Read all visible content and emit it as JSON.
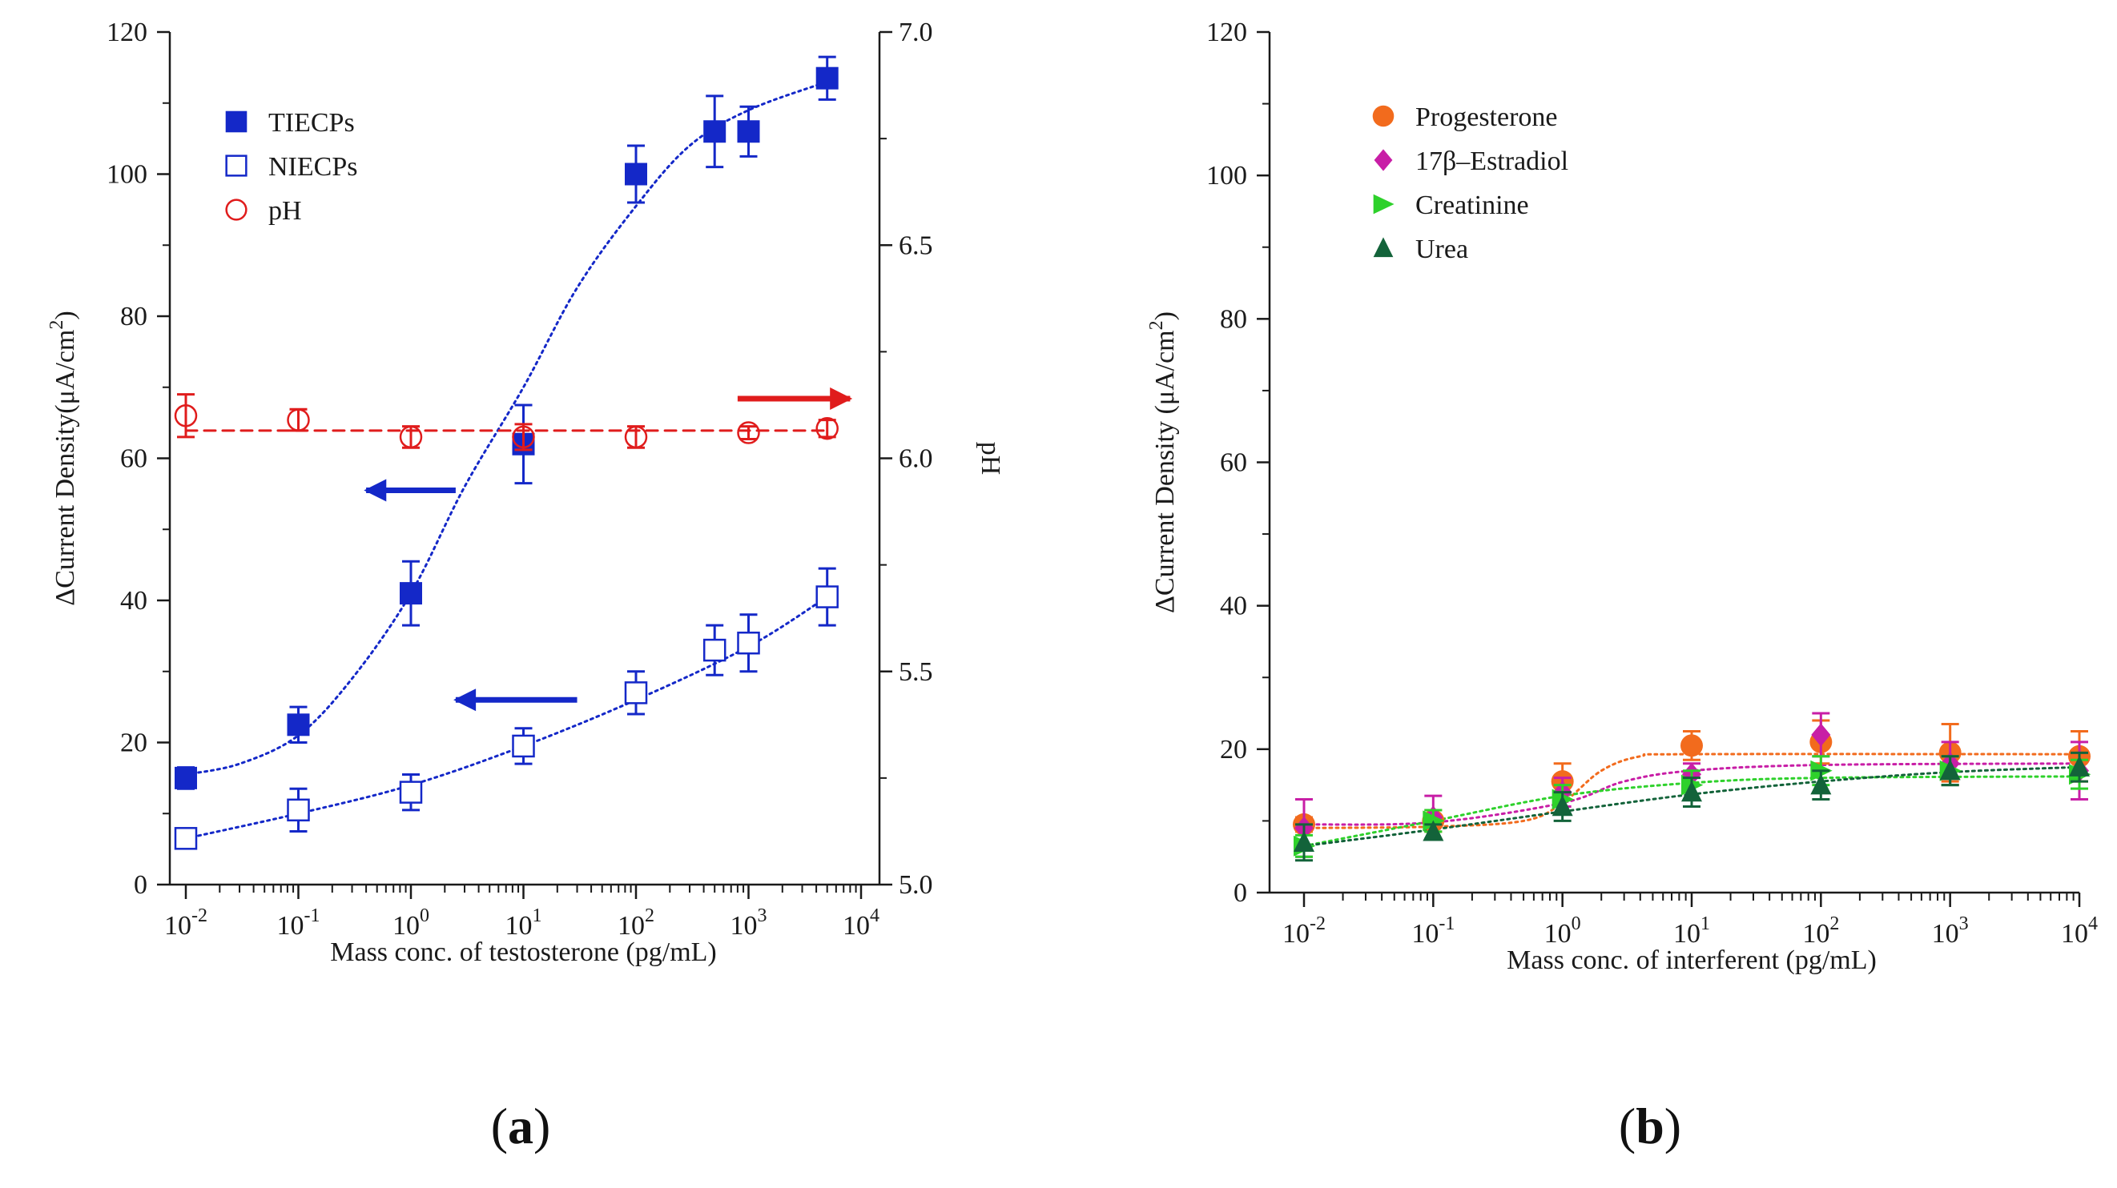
{
  "chart_data": [
    {
      "panel": "a",
      "panel_label": "a",
      "type": "scatter",
      "xscale": "log",
      "xlabel": "Mass conc. of testosterone (pg/mL)",
      "ylabel": "ΔCurrent Density(μA/cm²)",
      "ylabel_main": "ΔCurrent Density(μA/cm",
      "ylabel_sup": "2",
      "ylabel_close": ")",
      "y2label": "pH",
      "xlim": [
        0.01,
        10000
      ],
      "ylim": [
        0,
        120
      ],
      "y2lim": [
        5.0,
        7.0
      ],
      "x_ticks": [
        {
          "value": 0.01,
          "base": "10",
          "exp": "-2"
        },
        {
          "value": 0.1,
          "base": "10",
          "exp": "-1"
        },
        {
          "value": 1,
          "base": "10",
          "exp": "0"
        },
        {
          "value": 10,
          "base": "10",
          "exp": "1"
        },
        {
          "value": 100,
          "base": "10",
          "exp": "2"
        },
        {
          "value": 1000,
          "base": "10",
          "exp": "3"
        },
        {
          "value": 10000,
          "base": "10",
          "exp": "4"
        }
      ],
      "y_ticks": [
        "0",
        "20",
        "40",
        "60",
        "80",
        "100",
        "120"
      ],
      "y2_ticks": [
        "5.0",
        "5.5",
        "6.0",
        "6.5",
        "7.0"
      ],
      "series": [
        {
          "name": "TIECPs",
          "marker": "filled-square",
          "color": "#1428c8",
          "axis": "left",
          "x": [
            0.01,
            0.1,
            1,
            10,
            100,
            500,
            1000,
            5000
          ],
          "y": [
            15,
            22.5,
            41,
            62,
            100,
            106,
            106,
            113.5
          ],
          "err": [
            1.5,
            2.5,
            4.5,
            5.5,
            4,
            5,
            3.5,
            3
          ],
          "fit": {
            "style": "dotted",
            "points": [
              [
                0.01,
                15.5
              ],
              [
                0.03,
                17
              ],
              [
                0.1,
                21
              ],
              [
                0.3,
                29
              ],
              [
                1,
                41
              ],
              [
                3,
                56
              ],
              [
                10,
                70
              ],
              [
                30,
                84
              ],
              [
                100,
                95.5
              ],
              [
                300,
                104
              ],
              [
                1000,
                109
              ],
              [
                5000,
                113
              ]
            ]
          }
        },
        {
          "name": "NIECPs",
          "marker": "open-square",
          "color": "#1428c8",
          "axis": "left",
          "x": [
            0.01,
            0.1,
            1,
            10,
            100,
            500,
            1000,
            5000
          ],
          "y": [
            6.5,
            10.5,
            13,
            19.5,
            27,
            33,
            34,
            40.5
          ],
          "err": [
            0.5,
            3,
            2.5,
            2.5,
            3,
            3.5,
            4,
            4
          ],
          "fit": {
            "style": "dotted",
            "points": [
              [
                0.01,
                6.5
              ],
              [
                0.1,
                10
              ],
              [
                1,
                14
              ],
              [
                10,
                19.5
              ],
              [
                100,
                26
              ],
              [
                1000,
                33.5
              ],
              [
                5000,
                40.5
              ]
            ]
          }
        },
        {
          "name": "pH",
          "marker": "open-circle",
          "color": "#e01c1c",
          "axis": "right",
          "x": [
            0.01,
            0.1,
            1,
            10,
            100,
            1000,
            5000
          ],
          "y": [
            6.1,
            6.09,
            6.05,
            6.05,
            6.05,
            6.06,
            6.07
          ],
          "err": [
            0.05,
            0.025,
            0.025,
            0.03,
            0.025,
            0.015,
            0.02
          ],
          "fit": {
            "style": "dashed",
            "points": [
              [
                0.01,
                6.065
              ],
              [
                5000,
                6.065
              ]
            ]
          }
        }
      ],
      "annotations": [
        {
          "type": "arrow",
          "direction": "left",
          "color": "#1428c8",
          "x_from": 2.5,
          "x_to": 0.4,
          "y": 55.5,
          "axis": "left"
        },
        {
          "type": "arrow",
          "direction": "left",
          "color": "#1428c8",
          "x_from": 30,
          "x_to": 2.5,
          "y": 26,
          "axis": "left"
        },
        {
          "type": "arrow",
          "direction": "right",
          "color": "#e01c1c",
          "x_from": 800,
          "x_to": 8000,
          "y": 6.14,
          "axis": "right"
        }
      ]
    },
    {
      "panel": "b",
      "panel_label": "b",
      "type": "scatter",
      "xscale": "log",
      "xlabel": "Mass conc. of interferent (pg/mL)",
      "ylabel": "ΔCurrent Density (μA/cm²)",
      "ylabel_main": "ΔCurrent Density (μA/cm",
      "ylabel_sup": "2",
      "ylabel_close": ")",
      "xlim": [
        0.01,
        10000
      ],
      "ylim": [
        0,
        120
      ],
      "x_ticks": [
        {
          "value": 0.01,
          "base": "10",
          "exp": "-2"
        },
        {
          "value": 0.1,
          "base": "10",
          "exp": "-1"
        },
        {
          "value": 1,
          "base": "10",
          "exp": "0"
        },
        {
          "value": 10,
          "base": "10",
          "exp": "1"
        },
        {
          "value": 100,
          "base": "10",
          "exp": "2"
        },
        {
          "value": 1000,
          "base": "10",
          "exp": "3"
        },
        {
          "value": 10000,
          "base": "10",
          "exp": "4"
        }
      ],
      "y_ticks": [
        "0",
        "20",
        "40",
        "60",
        "80",
        "100",
        "120"
      ],
      "series": [
        {
          "name": "Progesterone",
          "marker": "filled-circle",
          "color": "#f26b1d",
          "x": [
            0.01,
            0.1,
            1,
            10,
            100,
            1000,
            10000
          ],
          "y": [
            9.5,
            10,
            15.5,
            20.5,
            21,
            19.5,
            19
          ],
          "err": [
            1,
            1.5,
            2.5,
            2,
            3,
            4,
            3.5
          ],
          "fit": {
            "style": "dotted",
            "points": [
              [
                0.01,
                9
              ],
              [
                0.1,
                9.2
              ],
              [
                0.5,
                10
              ],
              [
                1,
                12.5
              ],
              [
                2,
                17
              ],
              [
                4,
                19
              ],
              [
                10,
                19.3
              ],
              [
                10000,
                19.3
              ]
            ]
          }
        },
        {
          "name": "17β–Estradiol",
          "marker": "filled-diamond",
          "color": "#c81ea6",
          "x": [
            0.01,
            0.1,
            1,
            10,
            100,
            1000,
            10000
          ],
          "y": [
            9,
            10.5,
            14,
            16.5,
            22,
            18,
            17
          ],
          "err": [
            4,
            3,
            2,
            1.5,
            3,
            3,
            4
          ],
          "fit": {
            "style": "dotted",
            "points": [
              [
                0.01,
                9.5
              ],
              [
                0.1,
                9.8
              ],
              [
                1,
                12.5
              ],
              [
                3,
                15.5
              ],
              [
                10,
                17
              ],
              [
                100,
                17.8
              ],
              [
                10000,
                18
              ]
            ]
          }
        },
        {
          "name": "Creatinine",
          "marker": "filled-triangle-right",
          "color": "#2ed12b",
          "x": [
            0.01,
            0.1,
            1,
            10,
            100,
            1000,
            10000
          ],
          "y": [
            6.5,
            10,
            13,
            15,
            17,
            17,
            16.5
          ],
          "err": [
            1.5,
            1.5,
            2,
            2,
            2,
            2,
            2
          ],
          "fit": {
            "style": "dotted",
            "points": [
              [
                0.01,
                6.5
              ],
              [
                0.1,
                10
              ],
              [
                1,
                13.5
              ],
              [
                10,
                15.3
              ],
              [
                100,
                16
              ],
              [
                10000,
                16.2
              ]
            ]
          }
        },
        {
          "name": "Urea",
          "marker": "filled-triangle-up",
          "color": "#13633a",
          "x": [
            0.01,
            0.1,
            1,
            10,
            100,
            1000,
            10000
          ],
          "y": [
            7,
            8.5,
            12,
            14,
            15,
            17,
            17.5
          ],
          "err": [
            2.5,
            1,
            2,
            2,
            2,
            2,
            2
          ],
          "fit": {
            "style": "dotted",
            "points": [
              [
                0.01,
                6.5
              ],
              [
                0.1,
                8.8
              ],
              [
                1,
                11.3
              ],
              [
                10,
                13.7
              ],
              [
                100,
                15.5
              ],
              [
                1000,
                16.8
              ],
              [
                10000,
                17.5
              ]
            ]
          }
        }
      ]
    }
  ]
}
